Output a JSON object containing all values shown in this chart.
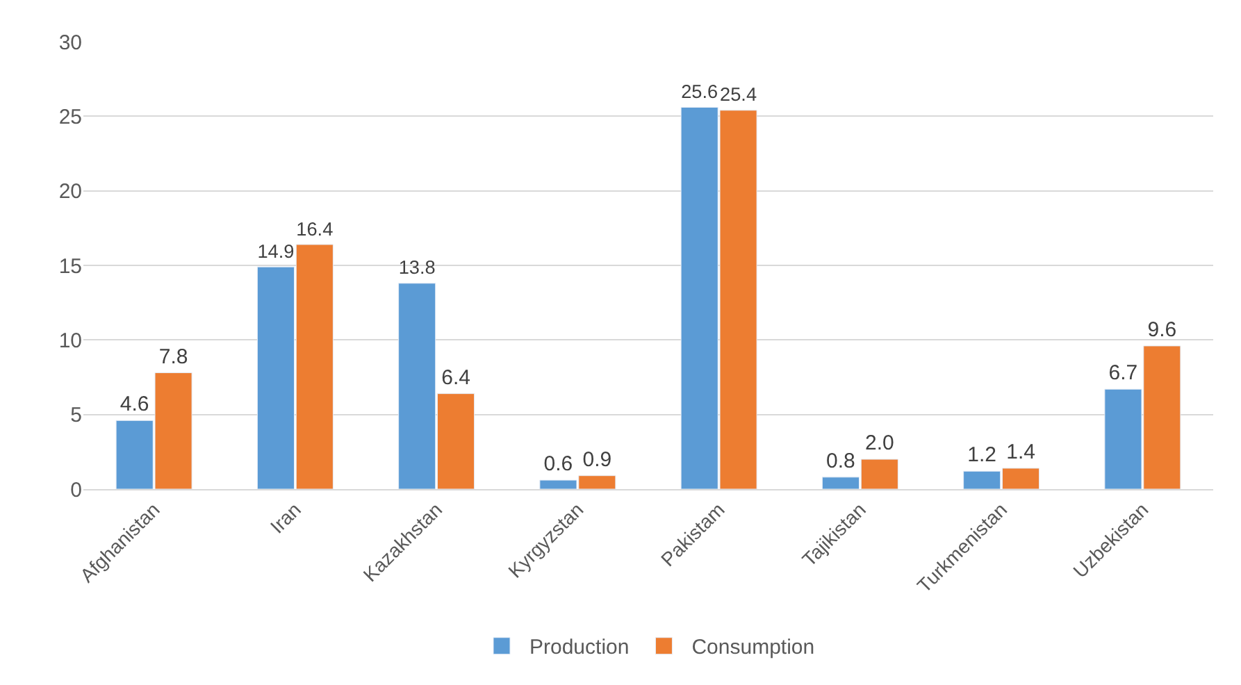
{
  "chart_data": {
    "type": "bar",
    "categories": [
      "Afghanistan",
      "Iran",
      "Kazakhstan",
      "Kyrgyzstan",
      "Pakistam",
      "Tajikistan",
      "Turkmenistan",
      "Uzbekistan"
    ],
    "series": [
      {
        "name": "Production",
        "color": "#5b9bd5",
        "values": [
          4.6,
          14.9,
          13.8,
          0.6,
          25.6,
          0.8,
          1.2,
          6.7
        ],
        "value_labels": [
          "4.6",
          "14.9",
          "13.8",
          "0.6",
          "25.6",
          "0.8",
          "1.2",
          "6.7"
        ]
      },
      {
        "name": "Consumption",
        "color": "#ed7d31",
        "values": [
          7.8,
          16.4,
          6.4,
          0.9,
          25.4,
          2.0,
          1.4,
          9.6
        ],
        "value_labels": [
          "7.8",
          "16.4",
          "6.4",
          "0.9",
          "25.4",
          "2.0",
          "1.4",
          "9.6"
        ]
      }
    ],
    "ylim": [
      0,
      30
    ],
    "yticks": [
      0,
      5,
      10,
      15,
      20,
      25,
      30
    ],
    "grid": "y",
    "legend": "bottom"
  }
}
